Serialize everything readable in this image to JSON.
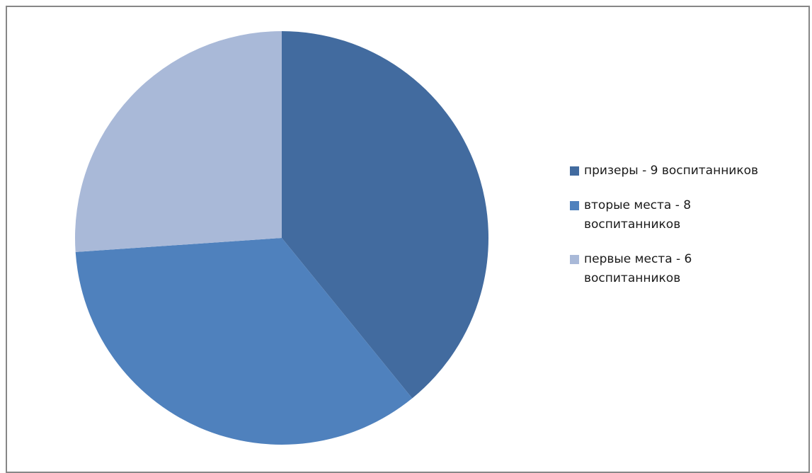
{
  "chart_data": {
    "type": "pie",
    "start": "12 o'clock",
    "direction": "clockwise",
    "legend_position": "right",
    "slices": [
      {
        "label": "призеры - 9 воспитанников",
        "value": 9,
        "color": "#426b9f"
      },
      {
        "label": "вторые места - 8\nвоспитанников",
        "value": 8,
        "color": "#4f81bd"
      },
      {
        "label": "первые места - 6\nвоспитанников",
        "value": 6,
        "color": "#a9b9d8"
      }
    ]
  }
}
